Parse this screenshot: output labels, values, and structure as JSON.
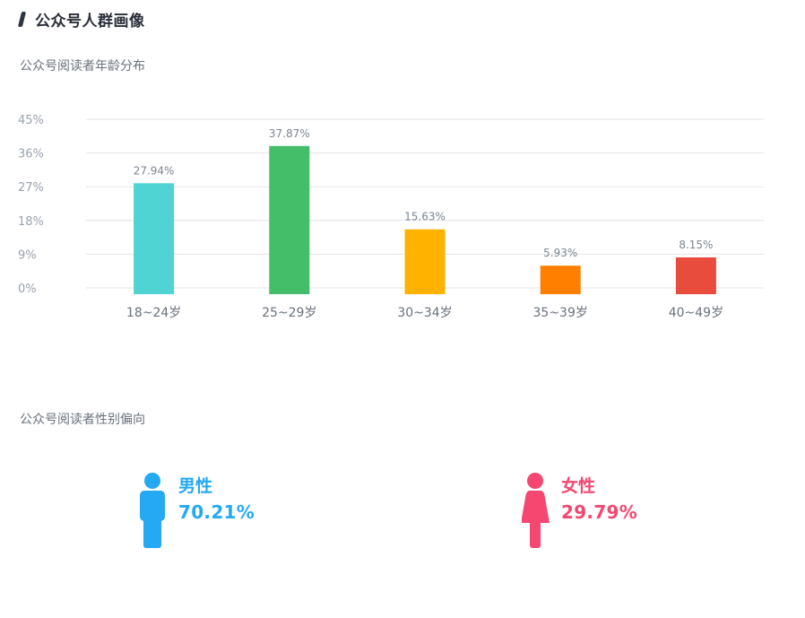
{
  "header": {
    "title": "公众号人群画像"
  },
  "age_section": {
    "label": "公众号阅读者年龄分布"
  },
  "gender_section": {
    "label": "公众号阅读者性别偏向"
  },
  "gender": {
    "male": {
      "label": "男性",
      "percent": "70.21%",
      "color": "#24a9f2",
      "icon": "male-figure-icon"
    },
    "female": {
      "label": "女性",
      "percent": "29.79%",
      "color": "#f5476f",
      "icon": "female-figure-icon"
    }
  },
  "chart_data": {
    "type": "bar",
    "title": "",
    "xlabel": "",
    "ylabel": "",
    "categories": [
      "18~24岁",
      "25~29岁",
      "30~34岁",
      "35~39岁",
      "40~49岁"
    ],
    "values": [
      27.94,
      37.87,
      15.63,
      5.93,
      8.15
    ],
    "value_labels": [
      "27.94%",
      "37.87%",
      "15.63%",
      "5.93%",
      "8.15%"
    ],
    "colors": [
      "#4fd3d3",
      "#45be6a",
      "#ffb300",
      "#ff7f00",
      "#e84c3d"
    ],
    "y_ticks": [
      "0%",
      "9%",
      "18%",
      "27%",
      "36%",
      "45%"
    ],
    "ylim": [
      0,
      45
    ],
    "grid": true,
    "legend": "none"
  }
}
